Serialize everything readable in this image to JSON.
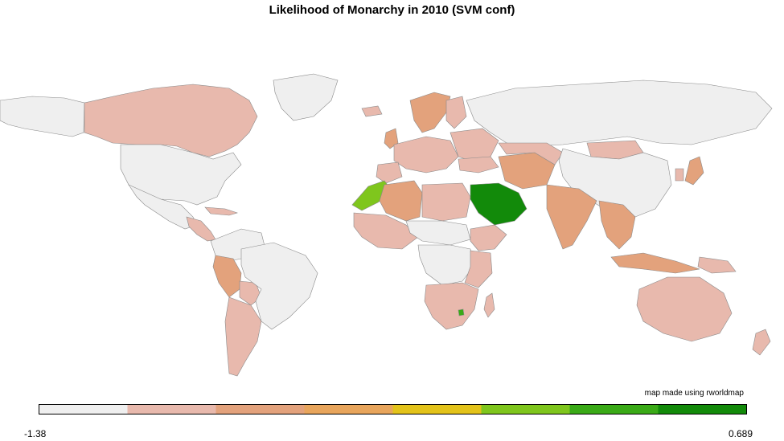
{
  "title": "Likelihood of Monarchy in 2010 (SVM conf)",
  "credit": "map made using rworldmap",
  "legend": {
    "min": "-1.38",
    "max": "0.689",
    "colors": [
      "#efefef",
      "#e8b9ad",
      "#e3a27c",
      "#e8a55c",
      "#e3c31a",
      "#7fc61d",
      "#3aaa17",
      "#128a0a"
    ]
  },
  "palette": {
    "none": "#efefef",
    "low": "#e8b9ad",
    "midlow": "#e3a27c",
    "mid": "#e3a26a",
    "midhigh": "#7fc61d",
    "high": "#3aaa17",
    "top": "#128a0a",
    "border": "#8a8a8a"
  }
}
